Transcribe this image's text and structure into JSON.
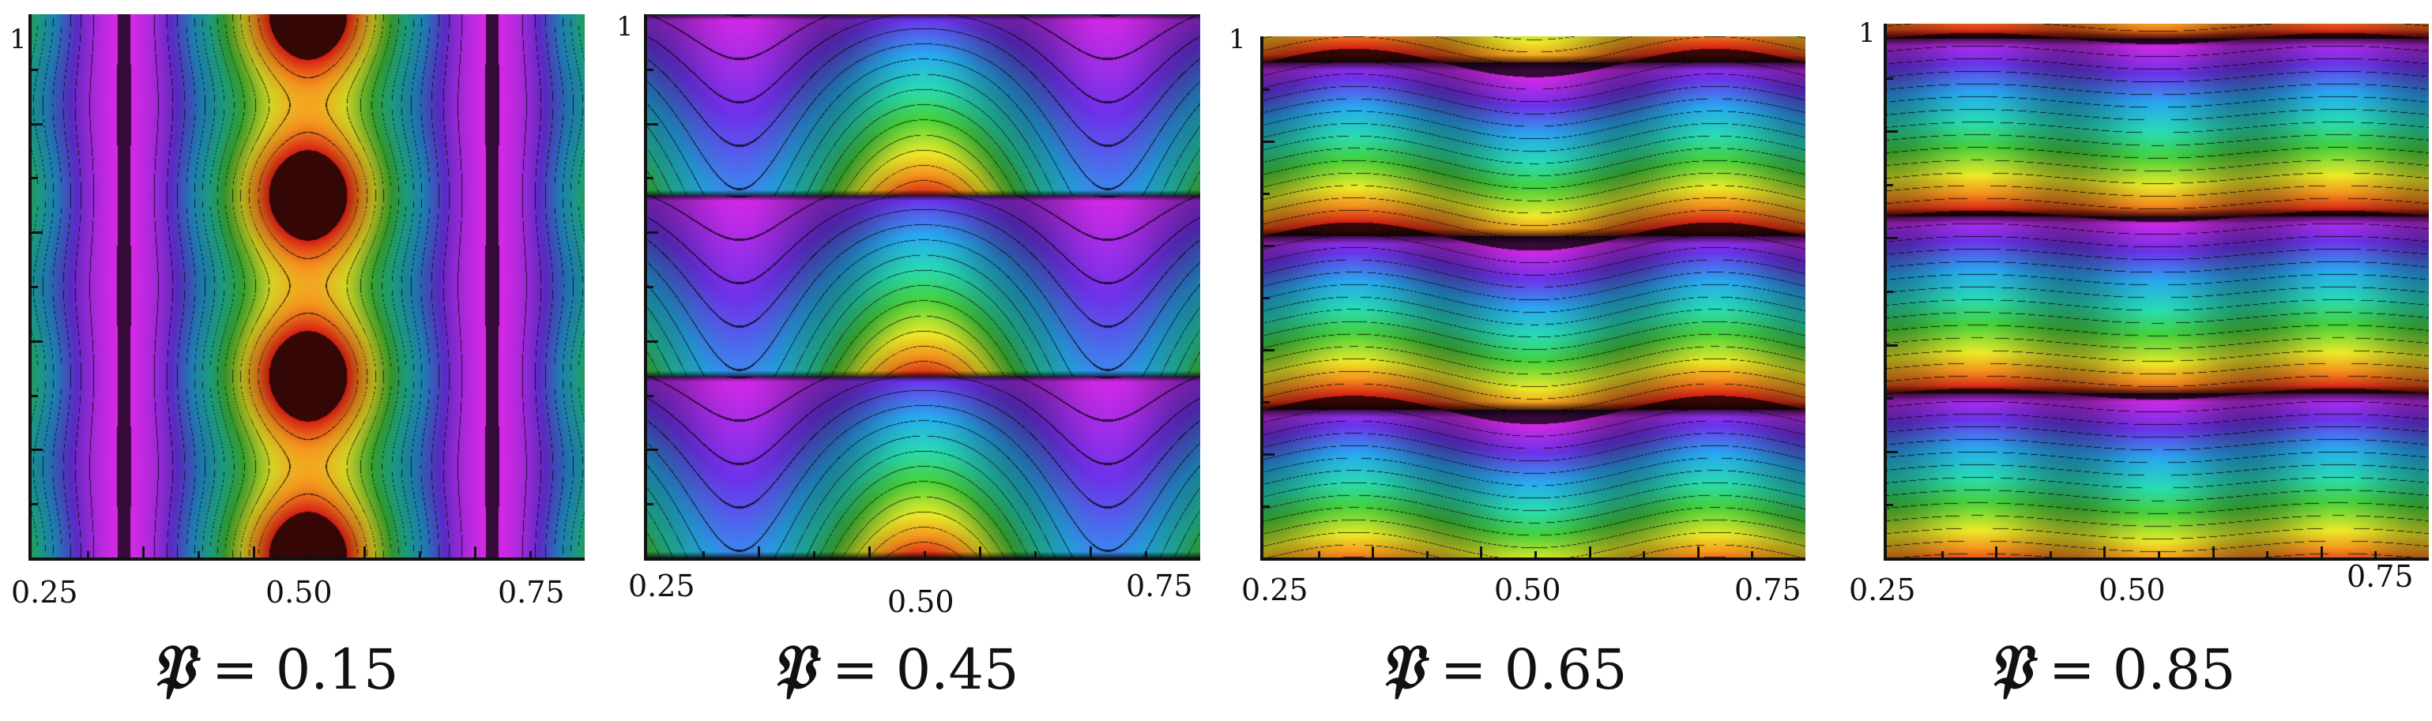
{
  "figure": {
    "panels": [
      {
        "caption_symbol": "𝔓",
        "caption_eq": "=",
        "caption_value": "0.15",
        "ytick_top": "1",
        "xtick_left": "0.25",
        "xtick_mid": "0.50",
        "xtick_right": "0.75"
      },
      {
        "caption_symbol": "𝔓",
        "caption_eq": "=",
        "caption_value": "0.45",
        "ytick_top": "1",
        "xtick_left": "0.25",
        "xtick_mid": "0.50",
        "xtick_right": "0.75"
      },
      {
        "caption_symbol": "𝔓",
        "caption_eq": "=",
        "caption_value": "0.65",
        "ytick_top": "1",
        "xtick_left": "0.25",
        "xtick_mid": "0.50",
        "xtick_right": "0.75"
      },
      {
        "caption_symbol": "𝔓",
        "caption_eq": "=",
        "caption_value": "0.85",
        "ytick_top": "1",
        "xtick_left": "0.25",
        "xtick_mid": "0.50",
        "xtick_right": "0.75"
      }
    ]
  },
  "chart_data": [
    {
      "type": "heatmap",
      "title": "𝔓 = 0.15",
      "parameter": 0.15,
      "xlim": [
        0.25,
        0.75
      ],
      "ylim": [
        0,
        1
      ],
      "xticks": [
        0.25,
        0.5,
        0.75
      ],
      "yticks_labeled": [
        1
      ],
      "colormap": "rainbow (magenta-blue-cyan-green-yellow-red)",
      "contours": true,
      "description_pattern": "vertical bands; peaks at x=0.50, minima near x=0.35 and x=0.67"
    },
    {
      "type": "heatmap",
      "title": "𝔓 = 0.45",
      "parameter": 0.45,
      "xlim": [
        0.25,
        0.75
      ],
      "ylim": [
        0,
        1
      ],
      "xticks": [
        0.25,
        0.5,
        0.75
      ],
      "yticks_labeled": [
        1
      ],
      "colormap": "rainbow (magenta-blue-cyan-green-yellow-red)",
      "contours": true
    },
    {
      "type": "heatmap",
      "title": "𝔓 = 0.65",
      "parameter": 0.65,
      "xlim": [
        0.25,
        0.75
      ],
      "ylim": [
        0,
        1
      ],
      "xticks": [
        0.25,
        0.5,
        0.75
      ],
      "yticks_labeled": [
        1
      ],
      "colormap": "rainbow (magenta-blue-cyan-green-yellow-red)",
      "contours": true
    },
    {
      "type": "heatmap",
      "title": "𝔓 = 0.85",
      "parameter": 0.85,
      "xlim": [
        0.25,
        0.75
      ],
      "ylim": [
        0,
        1
      ],
      "xticks": [
        0.25,
        0.5,
        0.75
      ],
      "yticks_labeled": [
        1
      ],
      "colormap": "rainbow (magenta-blue-cyan-green-yellow-red)",
      "contours": true
    }
  ]
}
